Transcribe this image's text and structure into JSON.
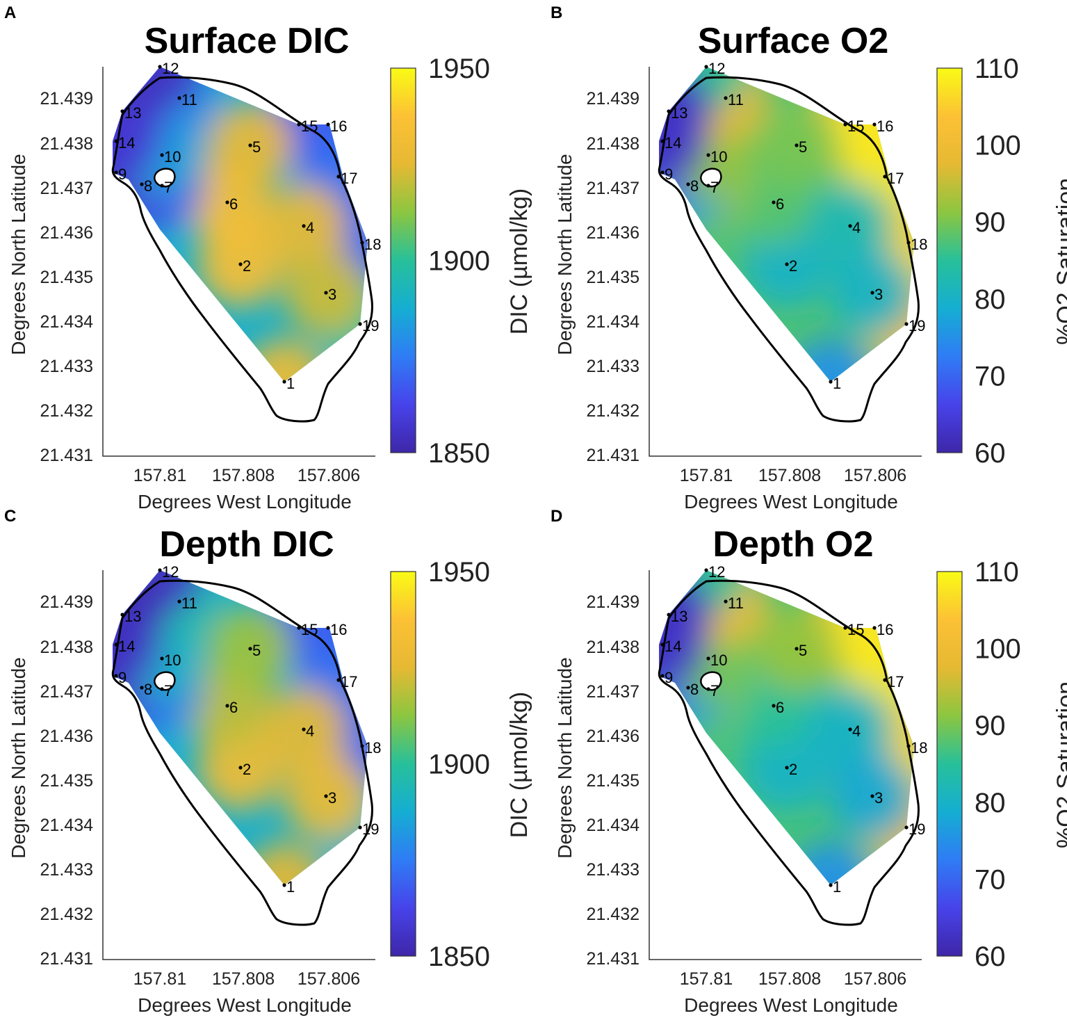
{
  "figure": {
    "colormap": [
      "#3e26a8",
      "#4743ea",
      "#2f7cf5",
      "#15aed2",
      "#27c09a",
      "#8cc640",
      "#e6b933",
      "#fcc135",
      "#f9fb15"
    ],
    "outline_color": "#000000"
  },
  "stations": [
    "1",
    "2",
    "3",
    "4",
    "5",
    "6",
    "7",
    "8",
    "9",
    "10",
    "11",
    "12",
    "13",
    "14",
    "15",
    "16",
    "17",
    "18",
    "19"
  ],
  "chart_data": [
    {
      "panel": "A",
      "type": "heatmap",
      "title": "Surface DIC",
      "xlabel": "Degrees West Longitude",
      "ylabel": "Degrees North Latitude",
      "x_ticks": [
        "157.81",
        "157.808",
        "157.806"
      ],
      "y_ticks": [
        "21.439",
        "21.438",
        "21.437",
        "21.436",
        "21.435",
        "21.434",
        "21.433",
        "21.432",
        "21.431"
      ],
      "colorbar": {
        "label": "DIC (µmol/kg)",
        "ticks": [
          "1950",
          "1900",
          "1850"
        ],
        "range": [
          1850,
          1950
        ]
      },
      "station_values": [
        1930,
        1935,
        1922,
        1928,
        1928,
        1935,
        1870,
        1862,
        1855,
        1885,
        1880,
        1855,
        1855,
        1858,
        1870,
        1868,
        1872,
        1870,
        1900
      ]
    },
    {
      "panel": "B",
      "type": "heatmap",
      "title": "Surface O2",
      "xlabel": "Degrees West Longitude",
      "ylabel": "Degrees North Latitude",
      "x_ticks": [
        "157.81",
        "157.808",
        "157.806"
      ],
      "y_ticks": [
        "21.439",
        "21.438",
        "21.437",
        "21.436",
        "21.435",
        "21.434",
        "21.433",
        "21.432",
        "21.431"
      ],
      "colorbar": {
        "label": "%O2 Saturation",
        "ticks": [
          "110",
          "100",
          "90",
          "80",
          "70",
          "60"
        ],
        "range": [
          60,
          110
        ]
      },
      "station_values": [
        75,
        80,
        80,
        82,
        90,
        88,
        92,
        78,
        70,
        92,
        98,
        85,
        63,
        63,
        102,
        108,
        108,
        106,
        102
      ]
    },
    {
      "panel": "C",
      "type": "heatmap",
      "title": "Depth DIC",
      "xlabel": "Degrees West Longitude",
      "ylabel": "Degrees North Latitude",
      "x_ticks": [
        "157.81",
        "157.808",
        "157.806"
      ],
      "y_ticks": [
        "21.439",
        "21.438",
        "21.437",
        "21.436",
        "21.435",
        "21.434",
        "21.433",
        "21.432",
        "21.431"
      ],
      "colorbar": {
        "label": "DIC (µmol/kg)",
        "ticks": [
          "1950",
          "1900",
          "1850"
        ],
        "range": [
          1850,
          1950
        ]
      },
      "station_values": [
        1925,
        1932,
        1930,
        1926,
        1915,
        1920,
        1880,
        1870,
        1855,
        1890,
        1895,
        1855,
        1852,
        1855,
        1872,
        1868,
        1872,
        1870,
        1892
      ]
    },
    {
      "panel": "D",
      "type": "heatmap",
      "title": "Depth O2",
      "xlabel": "Degrees West Longitude",
      "ylabel": "Degrees North Latitude",
      "x_ticks": [
        "157.81",
        "157.808",
        "157.806"
      ],
      "y_ticks": [
        "21.439",
        "21.438",
        "21.437",
        "21.436",
        "21.435",
        "21.434",
        "21.433",
        "21.432",
        "21.431"
      ],
      "colorbar": {
        "label": "%O2 Saturation",
        "ticks": [
          "110",
          "100",
          "90",
          "80",
          "70",
          "60"
        ],
        "range": [
          60,
          110
        ]
      },
      "station_values": [
        75,
        80,
        78,
        80,
        92,
        85,
        90,
        78,
        70,
        90,
        100,
        85,
        63,
        63,
        103,
        108,
        108,
        106,
        100
      ]
    }
  ]
}
